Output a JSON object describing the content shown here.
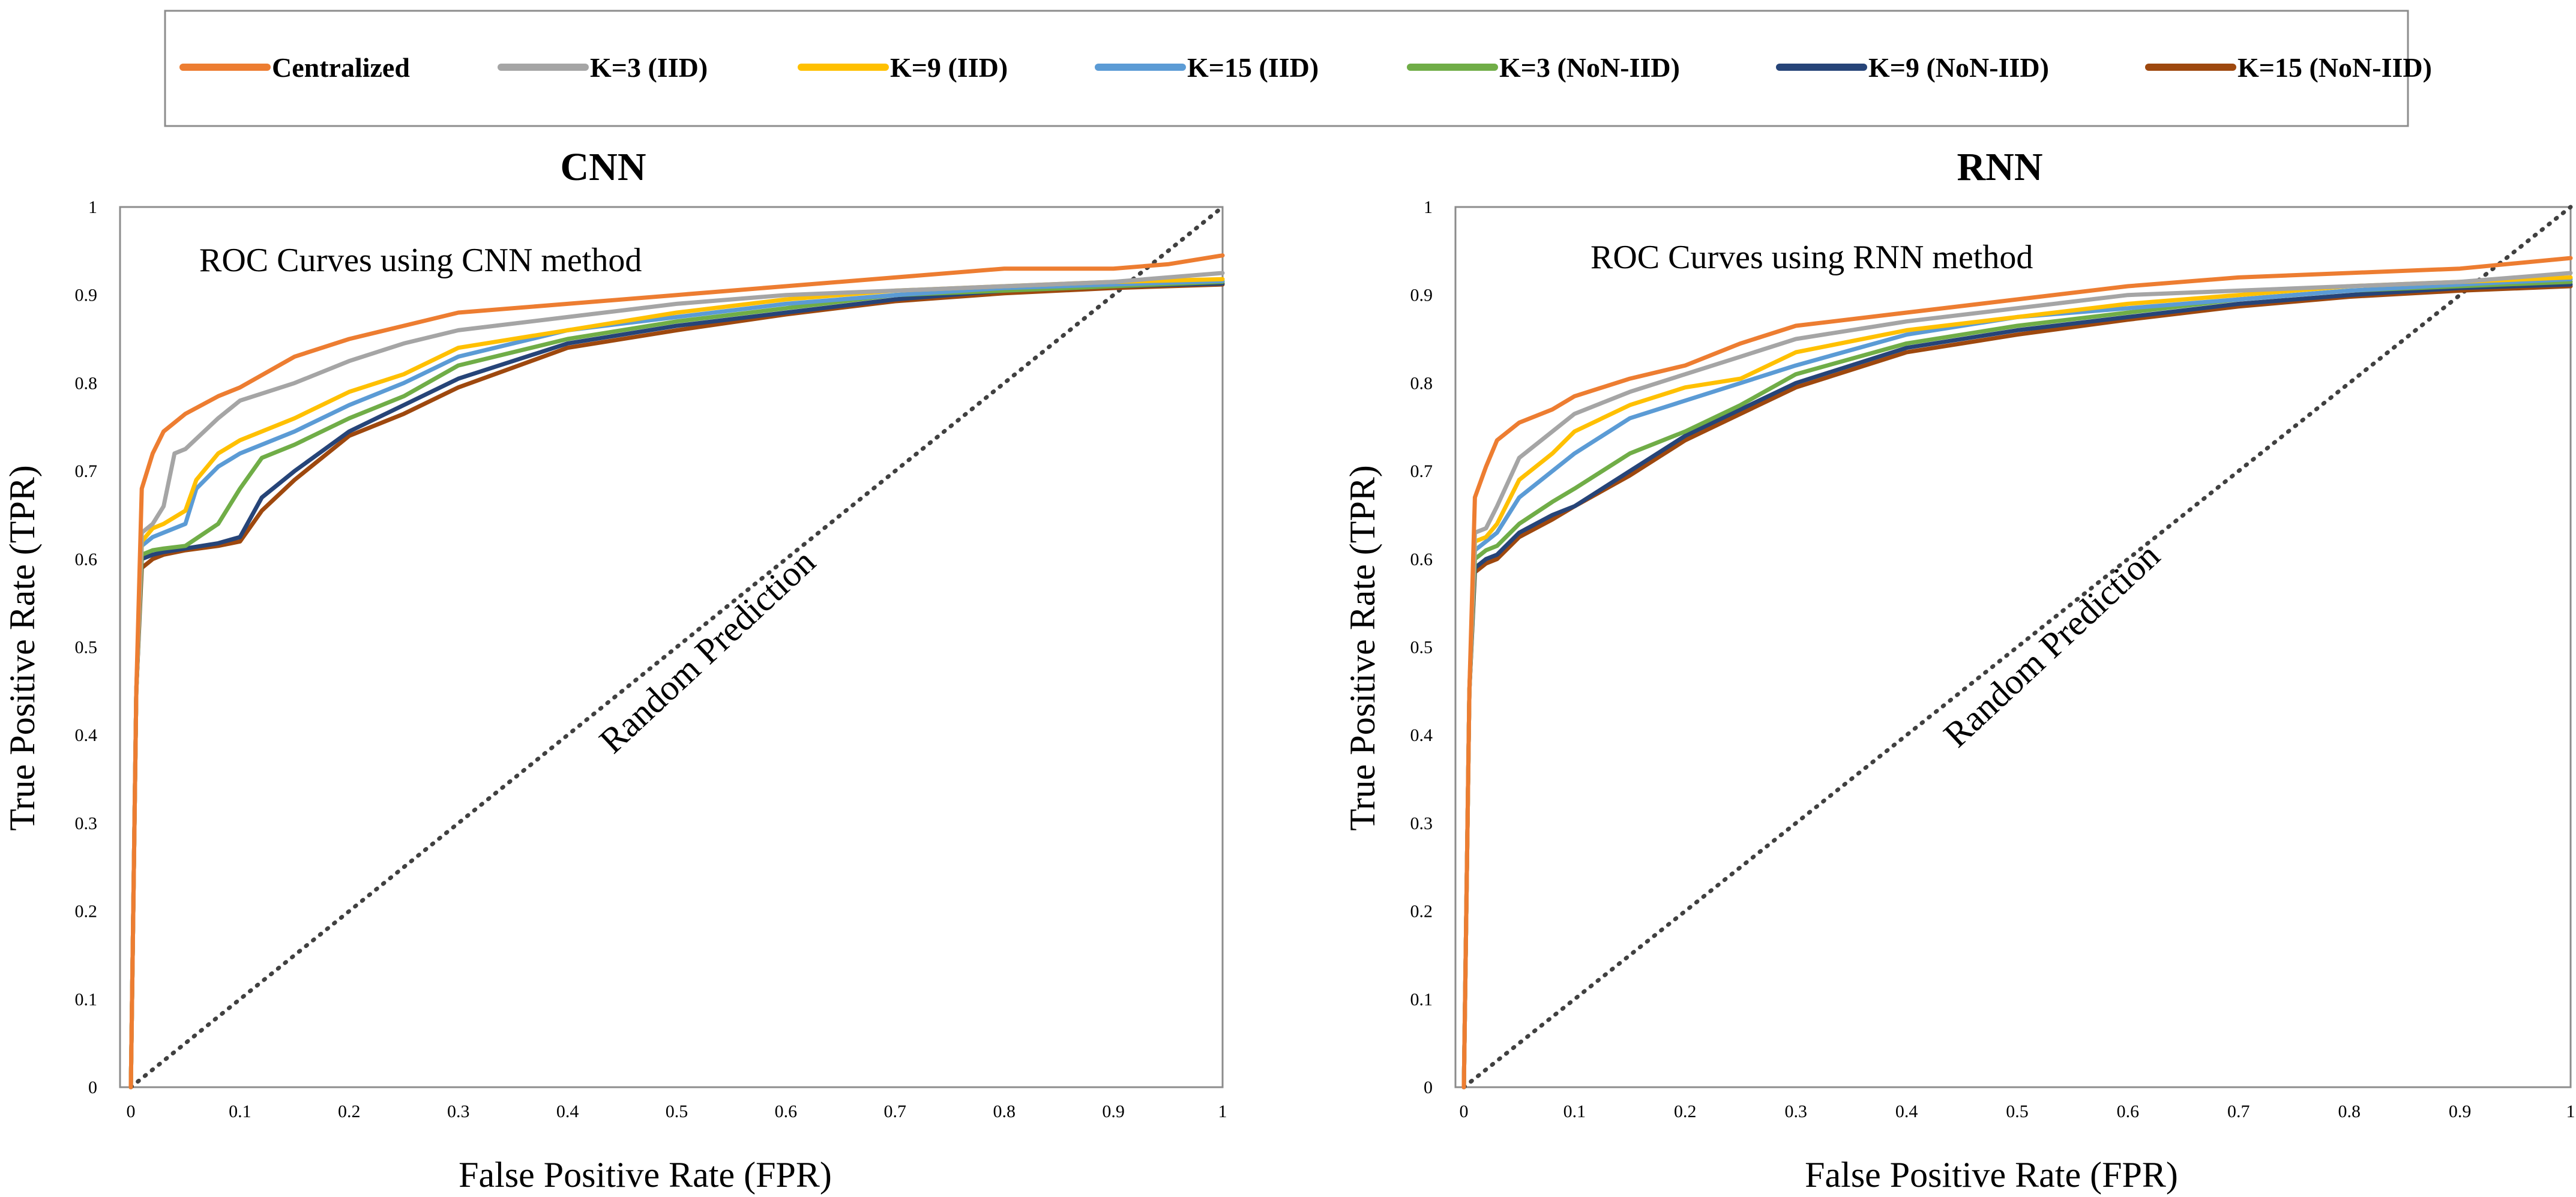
{
  "legend": {
    "items": [
      {
        "label": "Centralized",
        "color": "#ED7D31"
      },
      {
        "label": "K=3 (IID)",
        "color": "#A5A5A5"
      },
      {
        "label": "K=9 (IID)",
        "color": "#FFC000"
      },
      {
        "label": "K=15 (IID)",
        "color": "#5B9BD5"
      },
      {
        "label": "K=3 (NoN-IID)",
        "color": "#70AD47"
      },
      {
        "label": "K=9 (NoN-IID)",
        "color": "#264478"
      },
      {
        "label": "K=15 (NoN-IID)",
        "color": "#9E480E"
      }
    ]
  },
  "chart_data": [
    {
      "type": "line",
      "title": "CNN",
      "annotation": "ROC Curves using CNN method",
      "xlabel": "False Positive Rate (FPR)",
      "ylabel": "True Positive Rate (TPR)",
      "xlim": [
        0,
        1
      ],
      "ylim": [
        0,
        1
      ],
      "xticks": [
        "0",
        "0.1",
        "0.2",
        "0.3",
        "0.4",
        "0.5",
        "0.6",
        "0.7",
        "0.8",
        "0.9",
        "1"
      ],
      "yticks": [
        "0",
        "0.1",
        "0.2",
        "0.3",
        "0.4",
        "0.5",
        "0.6",
        "0.7",
        "0.8",
        "0.9",
        "1"
      ],
      "grid": false,
      "diagonal_label": "Random Prediction",
      "series": [
        {
          "name": "Centralized",
          "x": [
            0,
            0.005,
            0.01,
            0.02,
            0.03,
            0.05,
            0.08,
            0.1,
            0.15,
            0.2,
            0.25,
            0.3,
            0.4,
            0.5,
            0.6,
            0.7,
            0.8,
            0.9,
            0.95,
            1.0
          ],
          "y": [
            0,
            0.45,
            0.68,
            0.72,
            0.745,
            0.765,
            0.785,
            0.795,
            0.83,
            0.85,
            0.865,
            0.88,
            0.89,
            0.9,
            0.91,
            0.92,
            0.93,
            0.93,
            0.935,
            0.945
          ]
        },
        {
          "name": "K=3 (IID)",
          "x": [
            0,
            0.005,
            0.01,
            0.02,
            0.03,
            0.04,
            0.05,
            0.08,
            0.1,
            0.15,
            0.2,
            0.25,
            0.3,
            0.4,
            0.5,
            0.6,
            0.7,
            0.8,
            0.9,
            1.0
          ],
          "y": [
            0,
            0.45,
            0.63,
            0.64,
            0.66,
            0.72,
            0.725,
            0.76,
            0.78,
            0.8,
            0.825,
            0.845,
            0.86,
            0.875,
            0.89,
            0.9,
            0.905,
            0.91,
            0.915,
            0.925
          ]
        },
        {
          "name": "K=9 (IID)",
          "x": [
            0,
            0.005,
            0.01,
            0.02,
            0.03,
            0.05,
            0.06,
            0.08,
            0.1,
            0.15,
            0.2,
            0.25,
            0.3,
            0.4,
            0.5,
            0.6,
            0.7,
            0.8,
            0.9,
            1.0
          ],
          "y": [
            0,
            0.45,
            0.62,
            0.635,
            0.64,
            0.655,
            0.69,
            0.72,
            0.735,
            0.76,
            0.79,
            0.81,
            0.84,
            0.86,
            0.88,
            0.895,
            0.905,
            0.91,
            0.915,
            0.918
          ]
        },
        {
          "name": "K=15 (IID)",
          "x": [
            0,
            0.005,
            0.01,
            0.02,
            0.03,
            0.05,
            0.06,
            0.08,
            0.1,
            0.15,
            0.2,
            0.25,
            0.3,
            0.4,
            0.5,
            0.6,
            0.7,
            0.8,
            0.9,
            1.0
          ],
          "y": [
            0,
            0.45,
            0.615,
            0.625,
            0.63,
            0.64,
            0.68,
            0.705,
            0.72,
            0.745,
            0.775,
            0.8,
            0.83,
            0.86,
            0.875,
            0.89,
            0.9,
            0.908,
            0.912,
            0.916
          ]
        },
        {
          "name": "K=3 (NoN-IID)",
          "x": [
            0,
            0.005,
            0.01,
            0.02,
            0.03,
            0.05,
            0.08,
            0.1,
            0.12,
            0.15,
            0.2,
            0.25,
            0.3,
            0.4,
            0.5,
            0.6,
            0.7,
            0.8,
            0.9,
            1.0
          ],
          "y": [
            0,
            0.45,
            0.605,
            0.61,
            0.612,
            0.615,
            0.64,
            0.68,
            0.715,
            0.73,
            0.76,
            0.785,
            0.82,
            0.85,
            0.87,
            0.885,
            0.9,
            0.905,
            0.91,
            0.915
          ]
        },
        {
          "name": "K=9 (NoN-IID)",
          "x": [
            0,
            0.005,
            0.01,
            0.02,
            0.03,
            0.05,
            0.08,
            0.1,
            0.12,
            0.15,
            0.2,
            0.25,
            0.3,
            0.4,
            0.5,
            0.6,
            0.7,
            0.8,
            0.9,
            1.0
          ],
          "y": [
            0,
            0.45,
            0.6,
            0.605,
            0.608,
            0.612,
            0.618,
            0.625,
            0.67,
            0.7,
            0.745,
            0.775,
            0.805,
            0.845,
            0.865,
            0.88,
            0.895,
            0.905,
            0.91,
            0.913
          ]
        },
        {
          "name": "K=15 (NoN-IID)",
          "x": [
            0,
            0.005,
            0.01,
            0.02,
            0.03,
            0.05,
            0.08,
            0.1,
            0.12,
            0.15,
            0.2,
            0.25,
            0.3,
            0.4,
            0.5,
            0.6,
            0.7,
            0.8,
            0.9,
            1.0
          ],
          "y": [
            0,
            0.45,
            0.59,
            0.6,
            0.605,
            0.61,
            0.615,
            0.62,
            0.655,
            0.69,
            0.74,
            0.765,
            0.795,
            0.84,
            0.86,
            0.878,
            0.893,
            0.902,
            0.908,
            0.912
          ]
        }
      ]
    },
    {
      "type": "line",
      "title": "RNN",
      "annotation": "ROC Curves using RNN method",
      "xlabel": "False Positive Rate (FPR)",
      "ylabel": "True Positive Rate (TPR)",
      "xlim": [
        0,
        1
      ],
      "ylim": [
        0,
        1
      ],
      "xticks": [
        "0",
        "0.1",
        "0.2",
        "0.3",
        "0.4",
        "0.5",
        "0.6",
        "0.7",
        "0.8",
        "0.9",
        "1"
      ],
      "yticks": [
        "0",
        "0.1",
        "0.2",
        "0.3",
        "0.4",
        "0.5",
        "0.6",
        "0.7",
        "0.8",
        "0.9",
        "1"
      ],
      "grid": false,
      "diagonal_label": "Random Prediction",
      "series": [
        {
          "name": "Centralized",
          "x": [
            0,
            0.005,
            0.01,
            0.02,
            0.03,
            0.05,
            0.08,
            0.1,
            0.15,
            0.2,
            0.25,
            0.3,
            0.4,
            0.5,
            0.6,
            0.7,
            0.8,
            0.9,
            1.0
          ],
          "y": [
            0,
            0.45,
            0.67,
            0.705,
            0.735,
            0.755,
            0.77,
            0.785,
            0.805,
            0.82,
            0.845,
            0.865,
            0.88,
            0.895,
            0.91,
            0.92,
            0.925,
            0.93,
            0.942
          ]
        },
        {
          "name": "K=3 (IID)",
          "x": [
            0,
            0.005,
            0.01,
            0.02,
            0.03,
            0.05,
            0.08,
            0.1,
            0.15,
            0.2,
            0.25,
            0.3,
            0.4,
            0.5,
            0.6,
            0.7,
            0.8,
            0.9,
            1.0
          ],
          "y": [
            0,
            0.45,
            0.63,
            0.635,
            0.66,
            0.715,
            0.745,
            0.765,
            0.79,
            0.81,
            0.83,
            0.85,
            0.87,
            0.885,
            0.9,
            0.905,
            0.91,
            0.915,
            0.925
          ]
        },
        {
          "name": "K=9 (IID)",
          "x": [
            0,
            0.005,
            0.01,
            0.02,
            0.03,
            0.05,
            0.08,
            0.1,
            0.15,
            0.2,
            0.25,
            0.3,
            0.4,
            0.5,
            0.6,
            0.7,
            0.8,
            0.9,
            1.0
          ],
          "y": [
            0,
            0.45,
            0.62,
            0.625,
            0.64,
            0.69,
            0.72,
            0.745,
            0.775,
            0.795,
            0.805,
            0.835,
            0.86,
            0.875,
            0.89,
            0.9,
            0.91,
            0.915,
            0.92
          ]
        },
        {
          "name": "K=15 (IID)",
          "x": [
            0,
            0.005,
            0.01,
            0.02,
            0.03,
            0.05,
            0.08,
            0.1,
            0.15,
            0.2,
            0.25,
            0.3,
            0.4,
            0.5,
            0.6,
            0.7,
            0.8,
            0.9,
            1.0
          ],
          "y": [
            0,
            0.45,
            0.61,
            0.62,
            0.63,
            0.67,
            0.7,
            0.72,
            0.76,
            0.78,
            0.8,
            0.82,
            0.855,
            0.875,
            0.885,
            0.895,
            0.905,
            0.912,
            0.918
          ]
        },
        {
          "name": "K=3 (NoN-IID)",
          "x": [
            0,
            0.005,
            0.01,
            0.02,
            0.03,
            0.05,
            0.08,
            0.1,
            0.15,
            0.2,
            0.25,
            0.3,
            0.4,
            0.5,
            0.6,
            0.7,
            0.8,
            0.9,
            1.0
          ],
          "y": [
            0,
            0.45,
            0.6,
            0.61,
            0.615,
            0.64,
            0.665,
            0.68,
            0.72,
            0.745,
            0.775,
            0.81,
            0.845,
            0.865,
            0.88,
            0.895,
            0.905,
            0.91,
            0.915
          ]
        },
        {
          "name": "K=9 (NoN-IID)",
          "x": [
            0,
            0.005,
            0.01,
            0.02,
            0.03,
            0.05,
            0.08,
            0.1,
            0.15,
            0.2,
            0.25,
            0.3,
            0.4,
            0.5,
            0.6,
            0.7,
            0.8,
            0.9,
            1.0
          ],
          "y": [
            0,
            0.45,
            0.59,
            0.6,
            0.605,
            0.63,
            0.65,
            0.66,
            0.7,
            0.74,
            0.77,
            0.8,
            0.84,
            0.86,
            0.875,
            0.89,
            0.9,
            0.908,
            0.912
          ]
        },
        {
          "name": "K=15 (NoN-IID)",
          "x": [
            0,
            0.005,
            0.01,
            0.02,
            0.03,
            0.05,
            0.08,
            0.1,
            0.15,
            0.2,
            0.25,
            0.3,
            0.4,
            0.5,
            0.6,
            0.7,
            0.8,
            0.9,
            1.0
          ],
          "y": [
            0,
            0.45,
            0.585,
            0.595,
            0.6,
            0.625,
            0.645,
            0.66,
            0.695,
            0.735,
            0.765,
            0.795,
            0.835,
            0.855,
            0.872,
            0.887,
            0.898,
            0.905,
            0.91
          ]
        }
      ]
    }
  ]
}
